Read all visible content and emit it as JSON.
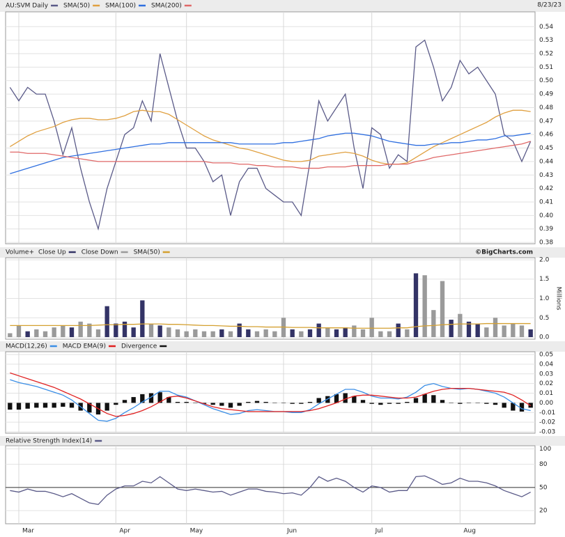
{
  "chart_data": [
    {
      "type": "line",
      "date": "8/23/23",
      "series": [
        {
          "name": "AU:SVM Daily",
          "color": "#5a5a88",
          "values": [
            0.495,
            0.485,
            0.495,
            0.49,
            0.49,
            0.47,
            0.445,
            0.465,
            0.435,
            0.41,
            0.39,
            0.42,
            0.44,
            0.46,
            0.465,
            0.485,
            0.47,
            0.52,
            0.495,
            0.47,
            0.45,
            0.45,
            0.44,
            0.425,
            0.43,
            0.4,
            0.425,
            0.435,
            0.435,
            0.42,
            0.415,
            0.41,
            0.41,
            0.4,
            0.44,
            0.485,
            0.47,
            0.48,
            0.49,
            0.45,
            0.42,
            0.465,
            0.46,
            0.435,
            0.445,
            0.44,
            0.525,
            0.53,
            0.51,
            0.485,
            0.495,
            0.515,
            0.505,
            0.51,
            0.5,
            0.49,
            0.46,
            0.455,
            0.44,
            0.455
          ]
        },
        {
          "name": "SMA(50)",
          "color": "#e0a040",
          "values": [
            0.451,
            0.455,
            0.459,
            0.462,
            0.464,
            0.466,
            0.469,
            0.471,
            0.472,
            0.472,
            0.471,
            0.471,
            0.472,
            0.474,
            0.477,
            0.478,
            0.477,
            0.477,
            0.475,
            0.471,
            0.467,
            0.463,
            0.459,
            0.456,
            0.454,
            0.452,
            0.45,
            0.449,
            0.447,
            0.445,
            0.443,
            0.441,
            0.44,
            0.44,
            0.441,
            0.444,
            0.445,
            0.446,
            0.447,
            0.446,
            0.444,
            0.441,
            0.439,
            0.438,
            0.438,
            0.439,
            0.443,
            0.447,
            0.451,
            0.454,
            0.457,
            0.46,
            0.463,
            0.466,
            0.469,
            0.473,
            0.476,
            0.478,
            0.478,
            0.477
          ]
        },
        {
          "name": "SMA(100)",
          "color": "#2f6fe0",
          "values": [
            0.431,
            0.433,
            0.435,
            0.437,
            0.439,
            0.441,
            0.443,
            0.444,
            0.445,
            0.446,
            0.447,
            0.448,
            0.449,
            0.45,
            0.451,
            0.452,
            0.453,
            0.453,
            0.454,
            0.454,
            0.454,
            0.454,
            0.454,
            0.454,
            0.454,
            0.454,
            0.453,
            0.453,
            0.453,
            0.453,
            0.453,
            0.454,
            0.454,
            0.455,
            0.456,
            0.457,
            0.459,
            0.46,
            0.461,
            0.461,
            0.46,
            0.459,
            0.457,
            0.455,
            0.454,
            0.453,
            0.452,
            0.452,
            0.453,
            0.453,
            0.454,
            0.454,
            0.455,
            0.456,
            0.456,
            0.457,
            0.459,
            0.459,
            0.46,
            0.461
          ]
        },
        {
          "name": "SMA(200)",
          "color": "#e06868",
          "values": [
            0.447,
            0.447,
            0.446,
            0.446,
            0.446,
            0.445,
            0.444,
            0.443,
            0.442,
            0.441,
            0.44,
            0.44,
            0.44,
            0.44,
            0.44,
            0.44,
            0.44,
            0.44,
            0.44,
            0.44,
            0.44,
            0.44,
            0.44,
            0.439,
            0.439,
            0.439,
            0.438,
            0.438,
            0.437,
            0.437,
            0.436,
            0.436,
            0.436,
            0.435,
            0.435,
            0.435,
            0.436,
            0.436,
            0.436,
            0.437,
            0.437,
            0.437,
            0.437,
            0.438,
            0.438,
            0.438,
            0.44,
            0.441,
            0.443,
            0.444,
            0.445,
            0.446,
            0.447,
            0.448,
            0.449,
            0.45,
            0.451,
            0.452,
            0.453,
            0.455
          ]
        }
      ],
      "ylim": [
        0.379,
        0.551
      ],
      "yticks": [
        0.38,
        0.39,
        {
          "value": 0.4,
          "label": "0.40"
        },
        0.41,
        0.42,
        0.43,
        0.44,
        0.45,
        0.46,
        0.47,
        0.48,
        0.49,
        {
          "value": 0.5,
          "label": "0.50"
        },
        0.51,
        0.52,
        0.53,
        0.54
      ],
      "grid": true
    },
    {
      "type": "bar",
      "title": "Volume+",
      "source": "©BigCharts.com",
      "y_label": "Millions",
      "series": [
        {
          "name": "Close Up",
          "color": "#333366",
          "values": [
            null,
            null,
            0.15,
            null,
            null,
            null,
            null,
            0.25,
            null,
            null,
            null,
            0.8,
            0.35,
            0.4,
            0.25,
            0.95,
            null,
            0.3,
            null,
            null,
            null,
            null,
            null,
            null,
            0.2,
            null,
            0.35,
            0.2,
            null,
            null,
            null,
            null,
            0.2,
            null,
            0.2,
            0.35,
            null,
            0.2,
            0.25,
            null,
            null,
            null,
            null,
            null,
            0.35,
            null,
            1.65,
            null,
            null,
            null,
            0.45,
            null,
            0.4,
            0.35,
            null,
            null,
            null,
            null,
            null,
            0.2
          ]
        },
        {
          "name": "Close Down",
          "color": "#9a9a9a",
          "values": [
            0.1,
            0.3,
            null,
            0.2,
            0.15,
            0.25,
            0.3,
            null,
            0.4,
            0.35,
            0.2,
            null,
            null,
            null,
            null,
            null,
            0.35,
            null,
            0.25,
            0.2,
            0.15,
            0.2,
            0.15,
            0.15,
            null,
            0.15,
            null,
            null,
            0.15,
            0.2,
            0.15,
            0.5,
            null,
            0.15,
            null,
            null,
            0.25,
            null,
            null,
            0.3,
            0.2,
            0.5,
            0.15,
            0.15,
            null,
            0.2,
            null,
            1.6,
            0.7,
            1.45,
            null,
            0.6,
            null,
            null,
            0.25,
            0.5,
            0.3,
            0.35,
            0.3,
            null
          ]
        },
        {
          "name": "SMA(50)",
          "type": "line",
          "color": "#d4a030",
          "values": [
            0.3,
            0.3,
            0.3,
            0.3,
            0.3,
            0.3,
            0.3,
            0.3,
            0.3,
            0.3,
            0.31,
            0.32,
            0.32,
            0.33,
            0.33,
            0.34,
            0.34,
            0.34,
            0.33,
            0.33,
            0.32,
            0.31,
            0.3,
            0.3,
            0.29,
            0.28,
            0.28,
            0.27,
            0.27,
            0.26,
            0.26,
            0.26,
            0.25,
            0.25,
            0.25,
            0.24,
            0.24,
            0.24,
            0.24,
            0.23,
            0.23,
            0.23,
            0.23,
            0.23,
            0.24,
            0.24,
            0.27,
            0.29,
            0.3,
            0.32,
            0.33,
            0.34,
            0.34,
            0.34,
            0.35,
            0.35,
            0.35,
            0.35,
            0.35,
            0.35
          ]
        }
      ],
      "ylim": [
        -0.054,
        2.054
      ],
      "yticks": [
        {
          "value": 0,
          "label": "0.0"
        },
        0.5,
        {
          "value": 1,
          "label": "1.0"
        },
        1.5,
        {
          "value": 2,
          "label": "2.0"
        }
      ],
      "grid": true
    },
    {
      "type": "line",
      "series": [
        {
          "name": "MACD(12,26)",
          "color": "#3a8ee6",
          "values": [
            0.024,
            0.021,
            0.019,
            0.017,
            0.014,
            0.011,
            0.008,
            0.003,
            -0.004,
            -0.011,
            -0.018,
            -0.019,
            -0.016,
            -0.01,
            -0.005,
            0.001,
            0.006,
            0.012,
            0.012,
            0.008,
            0.006,
            0.002,
            -0.002,
            -0.006,
            -0.009,
            -0.012,
            -0.011,
            -0.008,
            -0.007,
            -0.008,
            -0.009,
            -0.009,
            -0.01,
            -0.01,
            -0.007,
            -0.001,
            0.004,
            0.009,
            0.014,
            0.014,
            0.011,
            0.007,
            0.005,
            0.005,
            0.004,
            0.006,
            0.011,
            0.018,
            0.02,
            0.017,
            0.015,
            0.014,
            0.015,
            0.014,
            0.012,
            0.01,
            0.006,
            0,
            -0.006,
            -0.008
          ]
        },
        {
          "name": "MACD EMA(9)",
          "color": "#e02020",
          "values": [
            0.031,
            0.028,
            0.025,
            0.022,
            0.019,
            0.016,
            0.012,
            0.008,
            0.004,
            -0.001,
            -0.006,
            -0.011,
            -0.014,
            -0.013,
            -0.011,
            -0.008,
            -0.004,
            0.001,
            0.006,
            0.007,
            0.005,
            0.002,
            -0.001,
            -0.004,
            -0.006,
            -0.007,
            -0.008,
            -0.009,
            -0.009,
            -0.009,
            -0.009,
            -0.009,
            -0.009,
            -0.009,
            -0.008,
            -0.006,
            -0.003,
            0,
            0.004,
            0.007,
            0.008,
            0.008,
            0.007,
            0.006,
            0.005,
            0.005,
            0.006,
            0.009,
            0.012,
            0.014,
            0.015,
            0.015,
            0.015,
            0.014,
            0.013,
            0.012,
            0.011,
            0.008,
            0.003,
            -0.003
          ]
        },
        {
          "name": "Divergence",
          "type": "bar",
          "color": "#111111",
          "values": [
            -0.007,
            -0.007,
            -0.006,
            -0.005,
            -0.005,
            -0.005,
            -0.004,
            -0.005,
            -0.008,
            -0.01,
            -0.012,
            -0.008,
            -0.002,
            0.003,
            0.006,
            0.009,
            0.01,
            0.011,
            0.006,
            0.001,
            0.001,
            0,
            -0.001,
            -0.002,
            -0.003,
            -0.005,
            -0.003,
            0.001,
            0.002,
            0.001,
            0,
            0,
            -0.001,
            -0.001,
            0.001,
            0.005,
            0.007,
            0.009,
            0.01,
            0.007,
            0.003,
            -0.001,
            -0.002,
            -0.001,
            -0.001,
            0.001,
            0.005,
            0.009,
            0.008,
            0.003,
            0,
            -0.001,
            0,
            0,
            -0.001,
            -0.002,
            -0.005,
            -0.008,
            -0.009,
            -0.005
          ]
        }
      ],
      "ylim": [
        -0.0314,
        0.0529
      ],
      "yticks": [
        0.05,
        0.04,
        0.03,
        0.02,
        0.01,
        {
          "value": 0,
          "label": "0.00"
        },
        -0.01,
        -0.02,
        -0.03
      ],
      "grid": true
    },
    {
      "type": "line",
      "categories": [
        null,
        "Mar",
        null,
        null,
        null,
        null,
        null,
        null,
        null,
        null,
        null,
        null,
        "Apr",
        null,
        null,
        null,
        null,
        null,
        null,
        null,
        "May",
        null,
        null,
        null,
        null,
        null,
        null,
        null,
        null,
        null,
        null,
        "Jun",
        null,
        null,
        null,
        null,
        null,
        null,
        null,
        null,
        null,
        "Jul",
        null,
        null,
        null,
        null,
        null,
        null,
        null,
        null,
        null,
        "Aug",
        null,
        null,
        null,
        null,
        null,
        null,
        null,
        null
      ],
      "series": [
        {
          "name": "Relative Strength Index(14)",
          "color": "#5a5a88",
          "values": [
            46,
            44,
            48,
            45,
            45,
            42,
            38,
            42,
            36,
            30,
            28,
            40,
            48,
            52,
            52,
            58,
            56,
            64,
            56,
            48,
            46,
            48,
            46,
            44,
            45,
            40,
            44,
            48,
            48,
            45,
            44,
            42,
            43,
            40,
            50,
            64,
            58,
            62,
            58,
            50,
            44,
            52,
            50,
            44,
            46,
            46,
            64,
            65,
            60,
            54,
            56,
            62,
            58,
            58,
            56,
            52,
            46,
            42,
            38,
            44
          ]
        }
      ],
      "ylim": [
        3,
        104
      ],
      "yticks": [
        100,
        80,
        50,
        20
      ],
      "reference_line": 50,
      "grid": true
    }
  ]
}
